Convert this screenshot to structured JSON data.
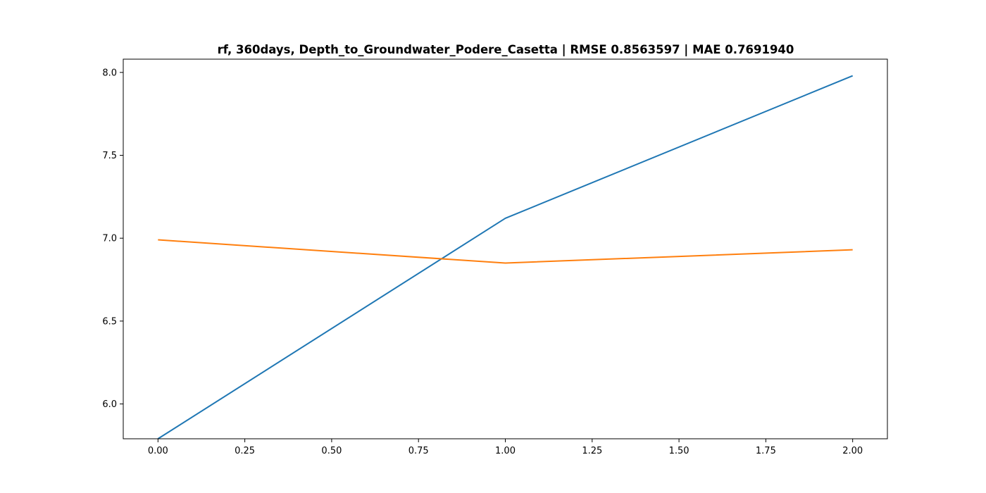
{
  "chart_data": {
    "type": "line",
    "title": "rf, 360days, Depth_to_Groundwater_Podere_Casetta | RMSE 0.8563597 | MAE 0.7691940",
    "xlabel": "",
    "ylabel": "",
    "x": [
      0,
      1,
      2
    ],
    "xlim": [
      -0.1,
      2.1
    ],
    "ylim": [
      5.79,
      8.08
    ],
    "xticks": [
      0.0,
      0.25,
      0.5,
      0.75,
      1.0,
      1.25,
      1.5,
      1.75,
      2.0
    ],
    "xtick_labels": [
      "0.00",
      "0.25",
      "0.50",
      "0.75",
      "1.00",
      "1.25",
      "1.50",
      "1.75",
      "2.00"
    ],
    "yticks": [
      6.0,
      6.5,
      7.0,
      7.5,
      8.0
    ],
    "ytick_labels": [
      "6.0",
      "6.5",
      "7.0",
      "7.5",
      "8.0"
    ],
    "grid": false,
    "series": [
      {
        "color": "#1f77b4",
        "values": [
          5.79,
          7.12,
          7.98
        ]
      },
      {
        "color": "#ff7f0e",
        "values": [
          6.99,
          6.85,
          6.93
        ]
      }
    ]
  }
}
